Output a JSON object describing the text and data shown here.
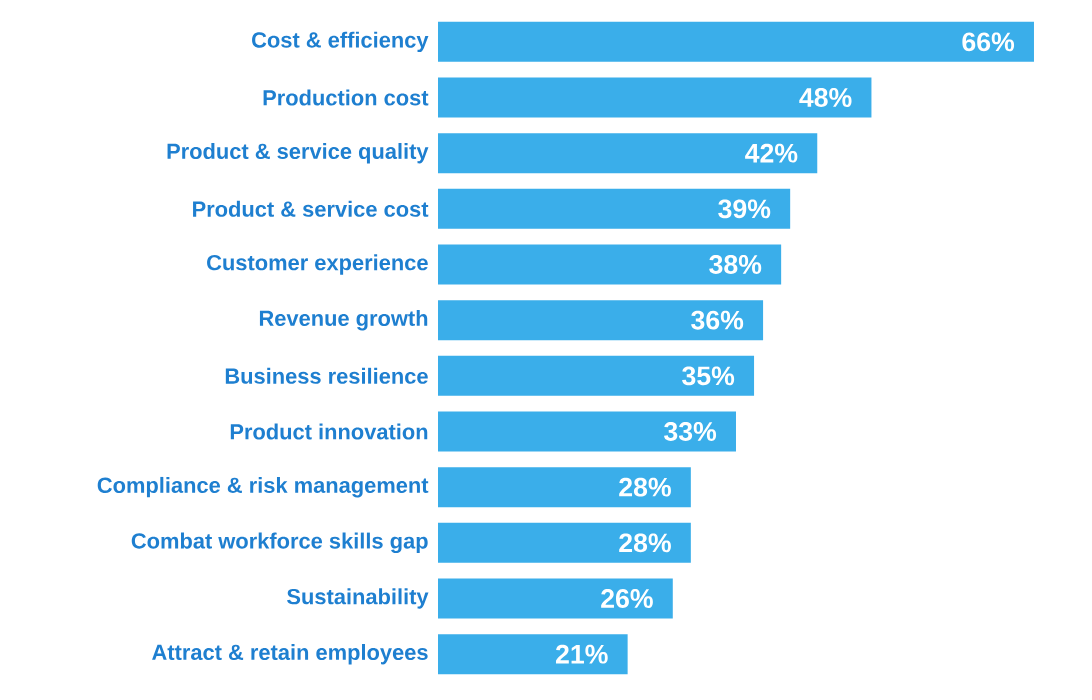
{
  "chart_data": {
    "type": "bar",
    "orientation": "horizontal",
    "categories": [
      "Cost & efficiency",
      "Production cost",
      "Product & service quality",
      "Product & service cost",
      "Customer experience",
      "Revenue growth",
      "Business resilience",
      "Product innovation",
      "Compliance & risk management",
      "Combat workforce skills gap",
      "Sustainability",
      "Attract & retain employees"
    ],
    "values": [
      66,
      48,
      42,
      39,
      38,
      36,
      35,
      33,
      28,
      28,
      26,
      21
    ],
    "value_labels": [
      "66%",
      "48%",
      "42%",
      "39%",
      "38%",
      "36%",
      "35%",
      "33%",
      "28%",
      "28%",
      "26%",
      "21%"
    ],
    "color": "#3aaeea"
  }
}
